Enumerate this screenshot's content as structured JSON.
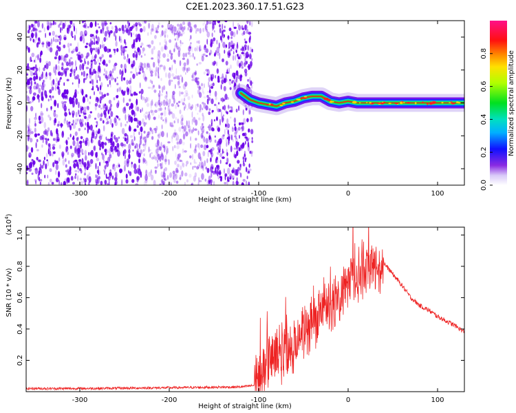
{
  "title": "C2E1.2023.360.17.51.G23",
  "colors": {
    "dot": "#6a00e8",
    "snr_line": "#ee2222",
    "axis": "#000000"
  },
  "chart_data": [
    {
      "type": "heatmap",
      "title": "C2E1.2023.360.17.51.G23",
      "xlabel": "Height of straight line (km)",
      "ylabel": "Frequency (Hz)",
      "xlim": [
        -360,
        130
      ],
      "ylim": [
        -50,
        50
      ],
      "xticks": [
        -300,
        -200,
        -100,
        0,
        100
      ],
      "yticks": [
        -40,
        -20,
        0,
        20,
        40
      ],
      "colorbar": {
        "label": "Normalized spectral amplitude",
        "ticks": [
          "0.0",
          "0.2",
          "0.4",
          "0.6",
          "0.8"
        ],
        "range": [
          0,
          1
        ]
      },
      "features": {
        "noise_region_x": [
          -360,
          -115
        ],
        "signal_track": {
          "x": [
            -120,
            -110,
            -100,
            -90,
            -80,
            -70,
            -60,
            -50,
            -40,
            -30,
            -20,
            -10,
            0,
            10,
            50,
            130
          ],
          "y": [
            6,
            2,
            0,
            -1,
            -2,
            0,
            1,
            3,
            4,
            4,
            1,
            0,
            1,
            0,
            0,
            0
          ]
        }
      }
    },
    {
      "type": "line",
      "xlabel": "Height of straight line (km)",
      "ylabel": "SNR (10 * v/v)",
      "yscale_label": "(x10^4)",
      "xlim": [
        -360,
        130
      ],
      "ylim": [
        0,
        1.05
      ],
      "xticks": [
        -300,
        -200,
        -100,
        0,
        100
      ],
      "ytick_labels": [
        "0.2",
        "0.4",
        "0.6",
        "0.8",
        "1.0"
      ],
      "series": [
        {
          "envelope": {
            "x": [
              -360,
              -300,
              -200,
              -120,
              -105,
              -100,
              -90,
              -80,
              -70,
              -60,
              -50,
              -40,
              -30,
              -20,
              -10,
              0,
              10,
              20,
              30,
              40,
              50,
              60,
              70,
              80,
              90,
              100,
              110,
              120,
              130
            ],
            "y": [
              0.02,
              0.02,
              0.025,
              0.03,
              0.04,
              0.08,
              0.18,
              0.22,
              0.26,
              0.3,
              0.38,
              0.42,
              0.5,
              0.55,
              0.6,
              0.7,
              0.75,
              0.77,
              0.8,
              0.82,
              0.75,
              0.68,
              0.6,
              0.55,
              0.52,
              0.48,
              0.45,
              0.42,
              0.38
            ]
          }
        }
      ]
    }
  ]
}
